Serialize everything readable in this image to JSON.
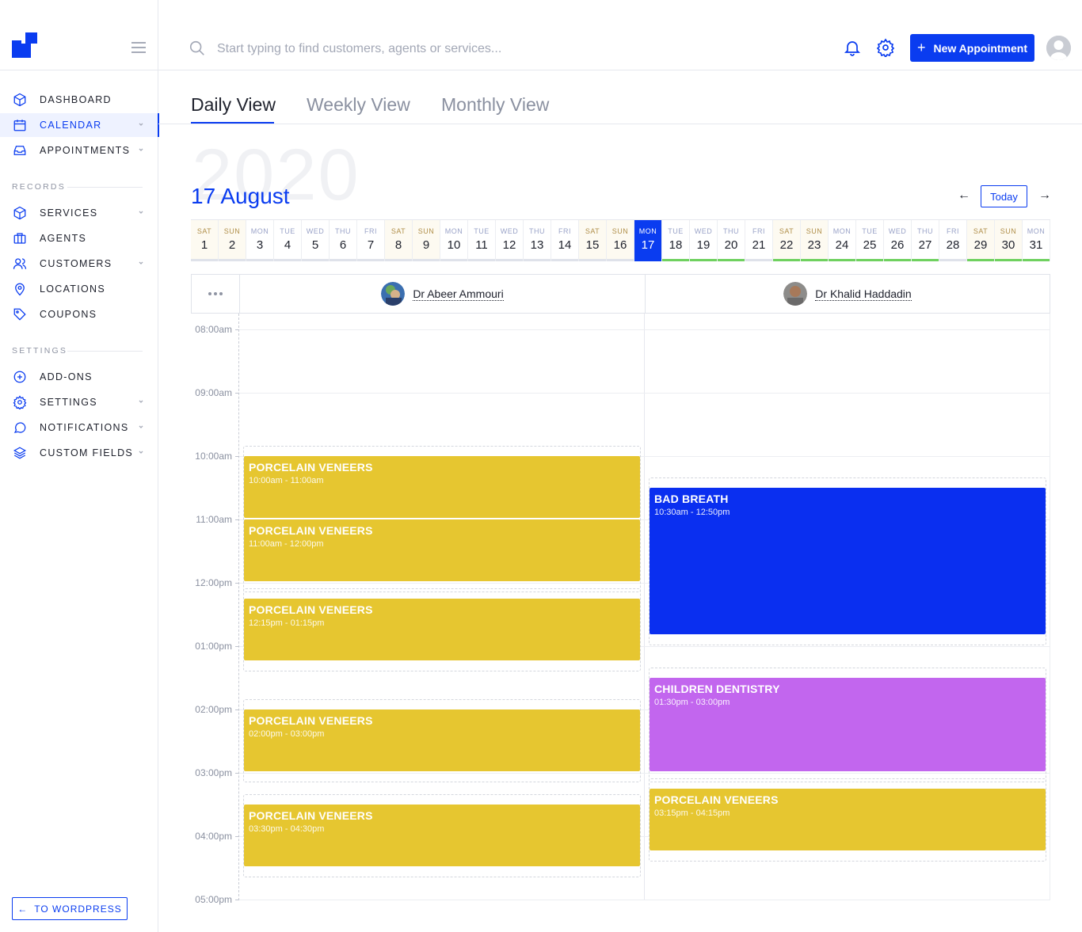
{
  "app": {
    "colors": {
      "accent": "#0a3cf0",
      "yellow": "#e6c630",
      "blue": "#0a2ff0",
      "purple": "#c266ee",
      "green": "#6fd15f"
    }
  },
  "sidebar": {
    "main_items": [
      {
        "label": "DASHBOARD",
        "icon": "box-icon"
      },
      {
        "label": "CALENDAR",
        "icon": "calendar-icon",
        "active": true
      },
      {
        "label": "APPOINTMENTS",
        "icon": "inbox-icon"
      }
    ],
    "records_heading": "RECORDS",
    "records_items": [
      {
        "label": "SERVICES",
        "icon": "box-icon"
      },
      {
        "label": "AGENTS",
        "icon": "briefcase-icon"
      },
      {
        "label": "CUSTOMERS",
        "icon": "users-icon"
      },
      {
        "label": "LOCATIONS",
        "icon": "map-pin-icon"
      },
      {
        "label": "COUPONS",
        "icon": "tag-icon"
      }
    ],
    "settings_heading": "SETTINGS",
    "settings_items": [
      {
        "label": "ADD-ONS",
        "icon": "plus-circle-icon"
      },
      {
        "label": "SETTINGS",
        "icon": "gear-icon"
      },
      {
        "label": "NOTIFICATIONS",
        "icon": "chat-icon"
      },
      {
        "label": "CUSTOM FIELDS",
        "icon": "layers-icon"
      }
    ],
    "to_wordpress": "TO WORDPRESS"
  },
  "topbar": {
    "search_placeholder": "Start typing to find customers, agents or services...",
    "new_appointment_label": "New Appointment"
  },
  "tabs": {
    "daily": "Daily View",
    "weekly": "Weekly View",
    "monthly": "Monthly View"
  },
  "header": {
    "year": "2020",
    "date_title": "17 August",
    "today_label": "Today"
  },
  "day_strip": [
    {
      "dow": "SAT",
      "d": "1"
    },
    {
      "dow": "SUN",
      "d": "2"
    },
    {
      "dow": "MON",
      "d": "3"
    },
    {
      "dow": "TUE",
      "d": "4"
    },
    {
      "dow": "WED",
      "d": "5"
    },
    {
      "dow": "THU",
      "d": "6"
    },
    {
      "dow": "FRI",
      "d": "7"
    },
    {
      "dow": "SAT",
      "d": "8"
    },
    {
      "dow": "SUN",
      "d": "9"
    },
    {
      "dow": "MON",
      "d": "10"
    },
    {
      "dow": "TUE",
      "d": "11"
    },
    {
      "dow": "WED",
      "d": "12"
    },
    {
      "dow": "THU",
      "d": "13"
    },
    {
      "dow": "FRI",
      "d": "14"
    },
    {
      "dow": "SAT",
      "d": "15"
    },
    {
      "dow": "SUN",
      "d": "16"
    },
    {
      "dow": "MON",
      "d": "17"
    },
    {
      "dow": "TUE",
      "d": "18"
    },
    {
      "dow": "WED",
      "d": "19"
    },
    {
      "dow": "THU",
      "d": "20"
    },
    {
      "dow": "FRI",
      "d": "21"
    },
    {
      "dow": "SAT",
      "d": "22"
    },
    {
      "dow": "SUN",
      "d": "23"
    },
    {
      "dow": "MON",
      "d": "24"
    },
    {
      "dow": "TUE",
      "d": "25"
    },
    {
      "dow": "WED",
      "d": "26"
    },
    {
      "dow": "THU",
      "d": "27"
    },
    {
      "dow": "FRI",
      "d": "28"
    },
    {
      "dow": "SAT",
      "d": "29"
    },
    {
      "dow": "SUN",
      "d": "30"
    },
    {
      "dow": "MON",
      "d": "31"
    }
  ],
  "selected_day": "17",
  "green_days": [
    "18",
    "19",
    "20",
    "22",
    "23",
    "24",
    "25",
    "26",
    "27",
    "29",
    "30",
    "31"
  ],
  "agents": [
    {
      "name": "Dr Abeer Ammouri"
    },
    {
      "name": "Dr Khalid Haddadin"
    }
  ],
  "time_labels": [
    "08:00am",
    "09:00am",
    "10:00am",
    "11:00am",
    "12:00pm",
    "01:00pm",
    "02:00pm",
    "03:00pm",
    "04:00pm",
    "05:00pm"
  ],
  "appointments": [
    {
      "agent": 0,
      "title": "PORCELAIN VENEERS",
      "time": "10:00am - 11:00am",
      "color": "yellow",
      "start": "10:00",
      "end": "11:00"
    },
    {
      "agent": 0,
      "title": "PORCELAIN VENEERS",
      "time": "11:00am - 12:00pm",
      "color": "yellow",
      "start": "11:00",
      "end": "12:00"
    },
    {
      "agent": 0,
      "title": "PORCELAIN VENEERS",
      "time": "12:15pm - 01:15pm",
      "color": "yellow",
      "start": "12:15",
      "end": "13:15"
    },
    {
      "agent": 0,
      "title": "PORCELAIN VENEERS",
      "time": "02:00pm - 03:00pm",
      "color": "yellow",
      "start": "14:00",
      "end": "15:00"
    },
    {
      "agent": 0,
      "title": "PORCELAIN VENEERS",
      "time": "03:30pm - 04:30pm",
      "color": "yellow",
      "start": "15:30",
      "end": "16:30"
    },
    {
      "agent": 1,
      "title": "BAD BREATH",
      "time": "10:30am - 12:50pm",
      "color": "blue",
      "start": "10:30",
      "end": "12:50"
    },
    {
      "agent": 1,
      "title": "CHILDREN DENTISTRY",
      "time": "01:30pm - 03:00pm",
      "color": "purple",
      "start": "13:30",
      "end": "15:00"
    },
    {
      "agent": 1,
      "title": "PORCELAIN VENEERS",
      "time": "03:15pm - 04:15pm",
      "color": "yellow",
      "start": "15:15",
      "end": "16:15"
    }
  ]
}
